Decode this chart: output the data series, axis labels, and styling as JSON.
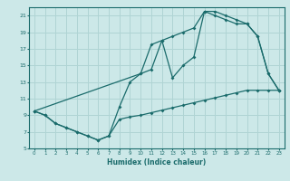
{
  "xlabel": "Humidex (Indice chaleur)",
  "bg_color": "#cce8e8",
  "grid_color": "#b0d4d4",
  "line_color": "#1a6b6b",
  "xlim": [
    -0.5,
    23.5
  ],
  "ylim": [
    5,
    22
  ],
  "xticks": [
    0,
    1,
    2,
    3,
    4,
    5,
    6,
    7,
    8,
    9,
    10,
    11,
    12,
    13,
    14,
    15,
    16,
    17,
    18,
    19,
    20,
    21,
    22,
    23
  ],
  "yticks": [
    5,
    7,
    9,
    11,
    13,
    15,
    17,
    19,
    21
  ],
  "line1_x": [
    0,
    1,
    2,
    3,
    4,
    5,
    6,
    7,
    8,
    9,
    10,
    11,
    12,
    13,
    14,
    15,
    16,
    17,
    18,
    19,
    20,
    21,
    22,
    23
  ],
  "line1_y": [
    9.5,
    9.0,
    8.0,
    7.5,
    7.0,
    6.5,
    6.0,
    6.5,
    10.0,
    13.0,
    14.0,
    17.5,
    18.0,
    18.5,
    19.0,
    19.5,
    21.5,
    21.5,
    21.0,
    20.5,
    20.0,
    18.5,
    14.0,
    12.0
  ],
  "line2_x": [
    0,
    1,
    2,
    3,
    4,
    5,
    6,
    7,
    8,
    9,
    10,
    11,
    12,
    13,
    14,
    15,
    16,
    17,
    18,
    19,
    20,
    21,
    22,
    23
  ],
  "line2_y": [
    9.5,
    9.0,
    8.0,
    7.5,
    7.0,
    6.5,
    6.0,
    6.5,
    8.5,
    8.8,
    9.0,
    9.3,
    9.6,
    9.9,
    10.2,
    10.5,
    10.8,
    11.1,
    11.4,
    11.7,
    12.0,
    12.0,
    12.0,
    12.0
  ],
  "line3_x": [
    0,
    10,
    11,
    12,
    13,
    14,
    15,
    16,
    17,
    18,
    19,
    20,
    21,
    22,
    23
  ],
  "line3_y": [
    9.5,
    14.0,
    14.5,
    18.0,
    13.5,
    15.0,
    16.0,
    21.5,
    21.0,
    20.5,
    20.0,
    20.0,
    18.5,
    14.0,
    12.0
  ]
}
